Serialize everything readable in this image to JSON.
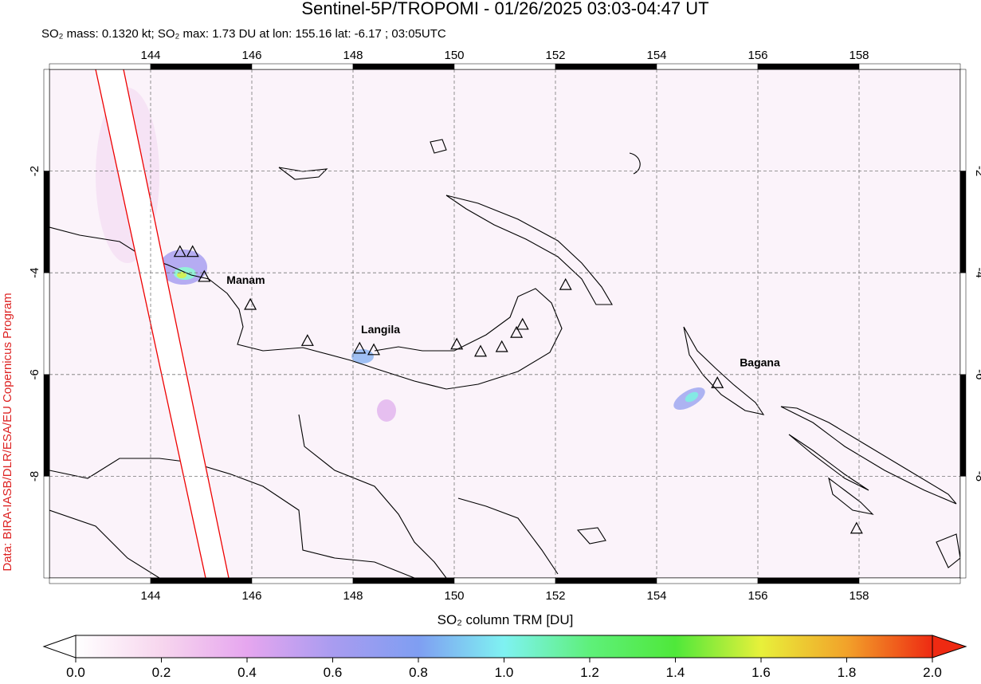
{
  "map": {
    "title": "Sentinel-5P/TROPOMI - 01/26/2025 03:03-04:47 UT",
    "subtitle": "SO₂ mass: 0.1320 kt; SO₂ max: 1.73 DU at lon: 155.16 lat: -6.17 ; 03:05UTC",
    "credit": "Data: BIRA-IASB/DLR/ESA/EU Copernicus Program",
    "xlim": [
      142,
      160
    ],
    "ylim": [
      -10,
      0
    ],
    "xticks": [
      144,
      146,
      148,
      150,
      152,
      154,
      156,
      158
    ],
    "yticks": [
      -2,
      -4,
      -6,
      -8
    ],
    "volcanoes": [
      {
        "name": "Manam",
        "lon": 145.06,
        "lat": -4.09
      },
      {
        "name": "Langila",
        "lon": 148.41,
        "lat": -5.53
      },
      {
        "name": "Bagana",
        "lon": 155.2,
        "lat": -6.18
      },
      {
        "name": null,
        "lon": 144.58,
        "lat": -3.6
      },
      {
        "name": null,
        "lon": 144.83,
        "lat": -3.6
      },
      {
        "name": null,
        "lon": 145.97,
        "lat": -4.64
      },
      {
        "name": null,
        "lon": 147.1,
        "lat": -5.35
      },
      {
        "name": null,
        "lon": 148.13,
        "lat": -5.5
      },
      {
        "name": null,
        "lon": 150.05,
        "lat": -5.42
      },
      {
        "name": null,
        "lon": 150.52,
        "lat": -5.56
      },
      {
        "name": null,
        "lon": 150.94,
        "lat": -5.47
      },
      {
        "name": null,
        "lon": 151.23,
        "lat": -5.19
      },
      {
        "name": null,
        "lon": 151.35,
        "lat": -5.03
      },
      {
        "name": null,
        "lon": 152.2,
        "lat": -4.25
      },
      {
        "name": null,
        "lon": 157.95,
        "lat": -9.04
      }
    ],
    "colorbar": {
      "title": "SO₂ column TRM [DU]",
      "lim": [
        0,
        2
      ],
      "colors": [
        "#ffffff",
        "#f7d6ee",
        "#e6a6ef",
        "#a99cf0",
        "#7f9ef2",
        "#7ff2f2",
        "#5ef07a",
        "#4fe83a",
        "#e8f03a",
        "#f2a22a",
        "#ee2a12"
      ],
      "ticks": [
        {
          "value": 0,
          "label": "0.0"
        },
        0.2,
        0.4,
        0.6,
        0.8,
        {
          "value": 1,
          "label": "1.0"
        },
        1.2,
        1.4,
        1.6,
        1.8,
        {
          "value": 2,
          "label": "2.0"
        }
      ]
    }
  }
}
